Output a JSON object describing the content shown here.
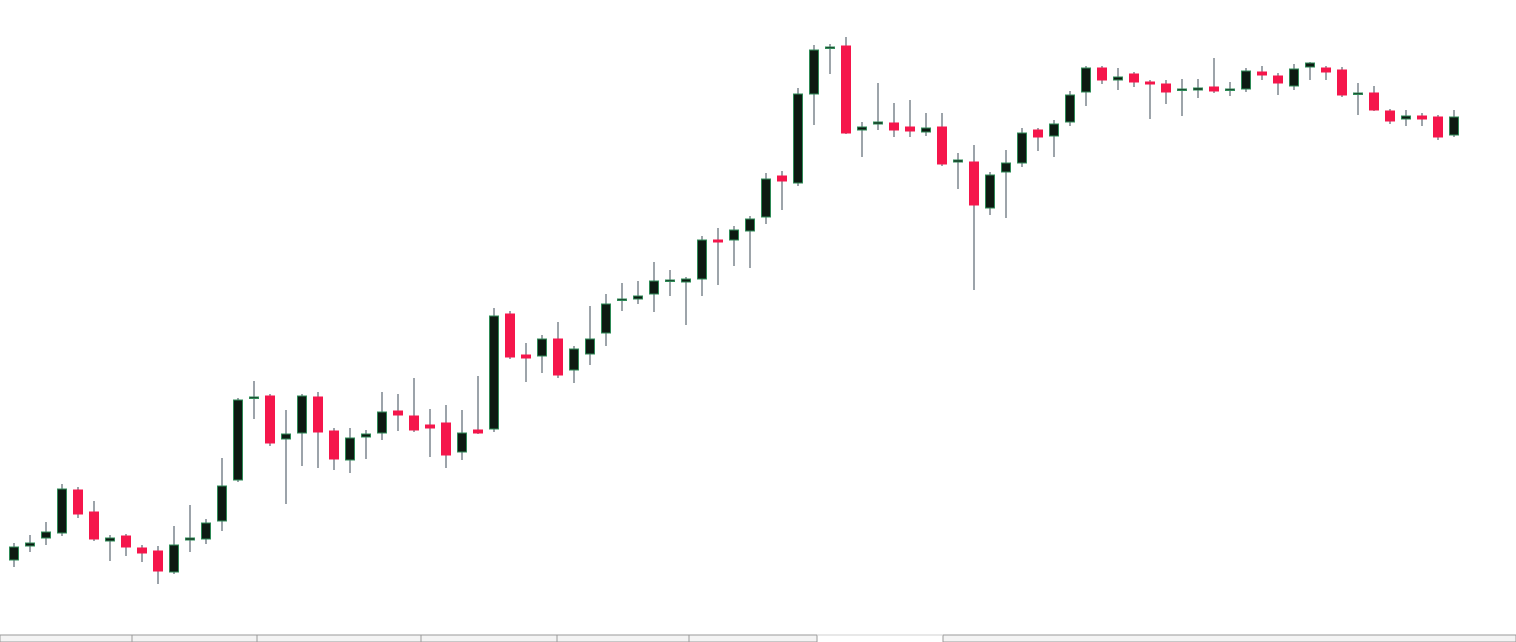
{
  "chart_data": {
    "type": "candlestick",
    "ylim": [
      0,
      642
    ],
    "up_color": "#0d1a12",
    "up_border": "#2e8b57",
    "down_color": "#f5164b",
    "wick_color": "#5b6672",
    "open": [
      82,
      96,
      104,
      109,
      152,
      130,
      101,
      106,
      94,
      91,
      70,
      102,
      103,
      121,
      162,
      244,
      246,
      203,
      209,
      245,
      211,
      182,
      205,
      209,
      231,
      226,
      217,
      219,
      190,
      212,
      213,
      328,
      287,
      286,
      303,
      272,
      288,
      309,
      342,
      343,
      348,
      361,
      360,
      363,
      402,
      402,
      411,
      425,
      466,
      459,
      548,
      594,
      596,
      512,
      518,
      519,
      515,
      510,
      515,
      480,
      480,
      434,
      470,
      479,
      512,
      506,
      520,
      550,
      574,
      562,
      568,
      560,
      558,
      552,
      552,
      555,
      552,
      553,
      570,
      566,
      556,
      575,
      574,
      572,
      548,
      549,
      531,
      523,
      526,
      525,
      507
    ],
    "high": [
      99,
      107,
      120,
      158,
      155,
      141,
      107,
      108,
      97,
      96,
      116,
      137,
      123,
      184,
      244,
      261,
      248,
      232,
      248,
      250,
      214,
      214,
      212,
      250,
      248,
      264,
      233,
      237,
      232,
      266,
      334,
      331,
      299,
      307,
      320,
      296,
      336,
      348,
      359,
      361,
      380,
      372,
      365,
      406,
      414,
      416,
      426,
      469,
      471,
      554,
      597,
      598,
      605,
      520,
      559,
      539,
      542,
      529,
      529,
      489,
      497,
      470,
      492,
      514,
      514,
      522,
      551,
      576,
      576,
      574,
      570,
      562,
      562,
      563,
      563,
      584,
      560,
      574,
      576,
      569,
      578,
      580,
      576,
      575,
      559,
      556,
      533,
      532,
      529,
      527,
      532
    ],
    "low": [
      75,
      90,
      97,
      106,
      124,
      101,
      81,
      86,
      80,
      58,
      68,
      90,
      98,
      111,
      160,
      223,
      196,
      138,
      176,
      174,
      172,
      169,
      183,
      202,
      211,
      210,
      185,
      174,
      182,
      208,
      210,
      283,
      260,
      269,
      264,
      259,
      277,
      296,
      331,
      338,
      330,
      346,
      317,
      346,
      357,
      376,
      374,
      418,
      432,
      456,
      517,
      568,
      508,
      485,
      512,
      505,
      505,
      506,
      476,
      453,
      352,
      427,
      424,
      475,
      491,
      485,
      516,
      536,
      558,
      552,
      555,
      523,
      538,
      526,
      544,
      549,
      546,
      550,
      562,
      547,
      552,
      562,
      562,
      545,
      527,
      531,
      518,
      516,
      516,
      502,
      505
    ],
    "close": [
      95,
      99,
      110,
      153,
      128,
      103,
      104,
      95,
      89,
      71,
      97,
      104,
      119,
      156,
      242,
      245,
      199,
      208,
      246,
      210,
      183,
      204,
      208,
      230,
      227,
      212,
      214,
      187,
      209,
      209,
      326,
      285,
      284,
      303,
      267,
      293,
      303,
      338,
      343,
      346,
      361,
      362,
      363,
      402,
      400,
      412,
      423,
      463,
      461,
      548,
      592,
      595,
      509,
      515,
      520,
      512,
      511,
      514,
      478,
      482,
      437,
      467,
      479,
      509,
      505,
      518,
      547,
      574,
      562,
      565,
      560,
      558,
      550,
      553,
      554,
      551,
      553,
      571,
      567,
      559,
      573,
      579,
      570,
      547,
      549,
      532,
      521,
      526,
      523,
      505,
      525
    ]
  }
}
